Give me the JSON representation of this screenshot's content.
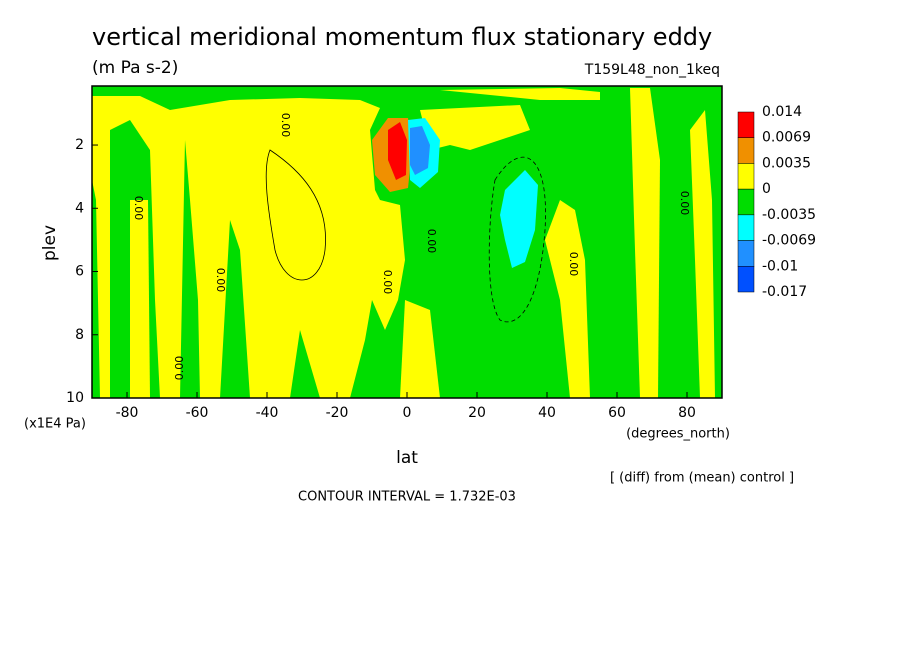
{
  "chart_data": {
    "type": "contour",
    "title": "vertical meridional momentum flux stationary eddy",
    "subtitle": "(m Pa s-2)",
    "experiment": "T159L48_non_1keq",
    "x_label": "lat",
    "x_units": "(degrees_north)",
    "y_label": "plev",
    "y_units": "(x1E4 Pa)",
    "note": "[ (diff) from (mean) control ]",
    "contour_interval": "CONTOUR INTERVAL = 1.732E-03",
    "contour_label": "0.00",
    "xlim": [
      -90,
      90
    ],
    "xticks": [
      -80,
      -60,
      -40,
      -20,
      0,
      20,
      40,
      60,
      80
    ],
    "ylim": [
      10,
      0.1
    ],
    "yticks": [
      2,
      4,
      6,
      8,
      10
    ],
    "colorbar": {
      "levels": [
        0.014,
        0.0069,
        0.0035,
        0,
        -0.0035,
        -0.0069,
        -0.01,
        -0.017
      ],
      "colors": [
        "#ff0000",
        "#f09000",
        "#ffff00",
        "#00dd00",
        "#00ffff",
        "#2090ff",
        "#0050ff"
      ]
    }
  }
}
